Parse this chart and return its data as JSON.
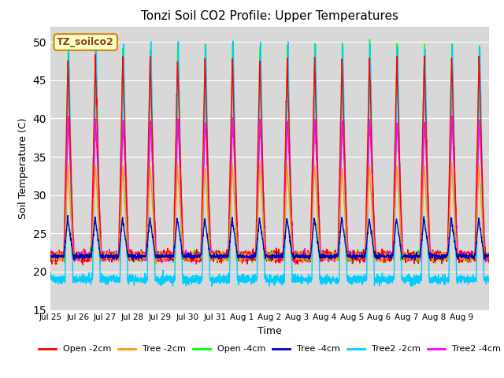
{
  "title": "Tonzi Soil CO2 Profile: Upper Temperatures",
  "ylabel": "Soil Temperature (C)",
  "xlabel": "Time",
  "ylim": [
    15,
    52
  ],
  "yticks": [
    15,
    20,
    25,
    30,
    35,
    40,
    45,
    50
  ],
  "background_color": "#ffffff",
  "plot_bg_color": "#d8d8d8",
  "series": {
    "Open -2cm": {
      "color": "#ff0000",
      "lw": 1.0
    },
    "Tree -2cm": {
      "color": "#ff9900",
      "lw": 1.0
    },
    "Open -4cm": {
      "color": "#00ff00",
      "lw": 1.0
    },
    "Tree -4cm": {
      "color": "#0000cc",
      "lw": 1.0
    },
    "Tree2 -2cm": {
      "color": "#00ccff",
      "lw": 1.0
    },
    "Tree2 -4cm": {
      "color": "#ff00ff",
      "lw": 1.0
    }
  },
  "annotation_text": "TZ_soilco2",
  "annotation_bg": "#ffffcc",
  "annotation_border": "#cc8800",
  "tick_labels": [
    "Jul 25",
    "Jul 26",
    "Jul 27",
    "Jul 28",
    "Jul 29",
    "Jul 30",
    "Jul 31",
    "Aug 1",
    "Aug 2",
    "Aug 3",
    "Aug 4",
    "Aug 5",
    "Aug 6",
    "Aug 7",
    "Aug 8",
    "Aug 9"
  ]
}
